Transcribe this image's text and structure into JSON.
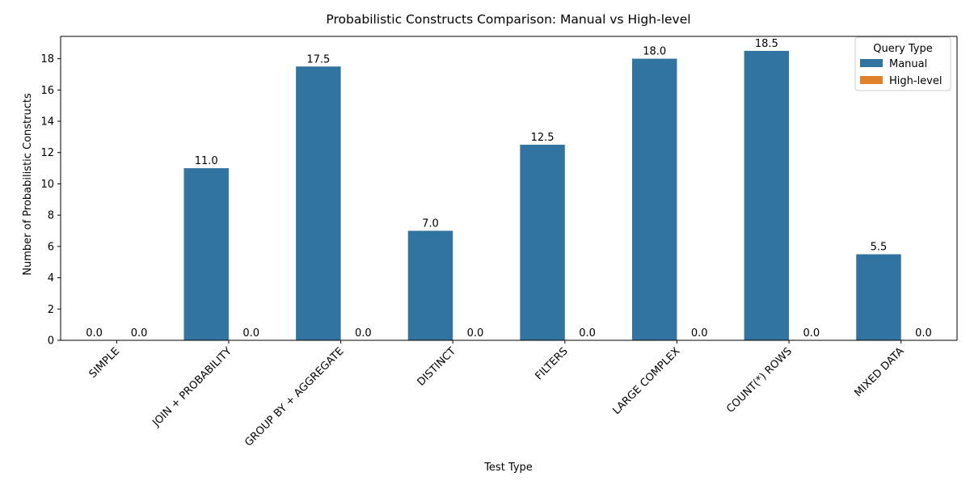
{
  "chart_data": {
    "type": "bar",
    "title": "Probabilistic Constructs Comparison: Manual vs High-level",
    "xlabel": "Test Type",
    "ylabel": "Number of Probabilistic Constructs",
    "categories": [
      "SIMPLE",
      "JOIN + PROBABILITY",
      "GROUP BY + AGGREGATE",
      "DISTINCT",
      "FILTERS",
      "LARGE COMPLEX",
      "COUNT(*) ROWS",
      "MIXED DATA"
    ],
    "series": [
      {
        "name": "Manual",
        "color": "#3274a1",
        "values": [
          0.0,
          11.0,
          17.5,
          7.0,
          12.5,
          18.0,
          18.5,
          5.5
        ]
      },
      {
        "name": "High-level",
        "color": "#e1812c",
        "values": [
          0.0,
          0.0,
          0.0,
          0.0,
          0.0,
          0.0,
          0.0,
          0.0
        ]
      }
    ],
    "ylim": [
      0,
      19.425
    ],
    "yticks": [
      0,
      2,
      4,
      6,
      8,
      10,
      12,
      14,
      16,
      18
    ],
    "grid": false,
    "legend": {
      "title": "Query Type",
      "placement": "top-right"
    }
  }
}
